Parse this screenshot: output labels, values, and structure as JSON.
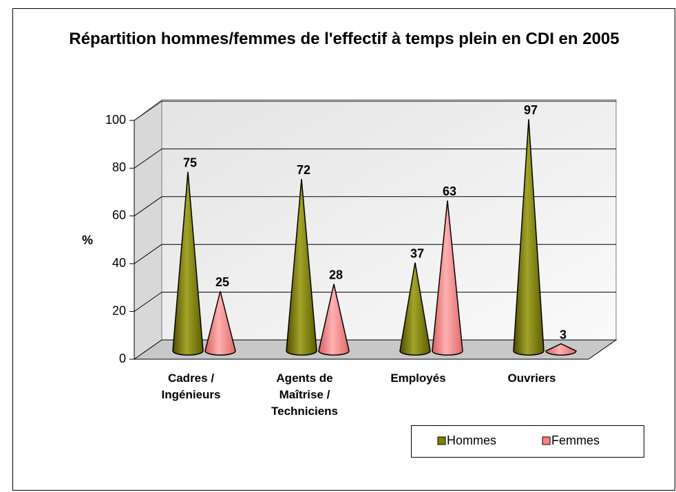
{
  "chart_data": {
    "type": "cone",
    "title": "Répartition hommes/femmes de l'effectif à temps plein en CDI en 2005",
    "y_label": "%",
    "categories": [
      "Cadres / Ingénieurs",
      "Agents de Maîtrise / Techniciens",
      "Employés",
      "Ouvriers"
    ],
    "series": [
      {
        "name": "Hommes",
        "color": "#808000",
        "values": [
          75,
          72,
          37,
          97
        ]
      },
      {
        "name": "Femmes",
        "color": "#ff8080",
        "values": [
          25,
          28,
          63,
          3
        ]
      }
    ],
    "ylim": [
      0,
      100
    ],
    "yticks": [
      0,
      20,
      40,
      60,
      80,
      100
    ],
    "grid": true,
    "legend": "bottom-right",
    "data_labels": true
  }
}
